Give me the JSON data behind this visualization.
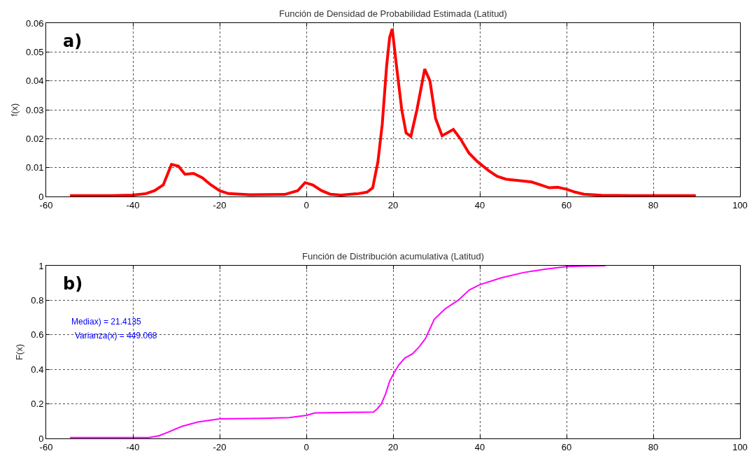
{
  "chart_data": [
    {
      "type": "line",
      "title": "Función de Densidad de Probabilidad Estimada (Latitud)",
      "ylabel": "f(x)",
      "annotations": [
        "a)"
      ],
      "series": [
        {
          "color": "#ff0000",
          "x": [
            -54.5,
            -45,
            -40,
            -37,
            -35,
            -33,
            -31.1,
            -29.5,
            -28,
            -26,
            -24,
            -22,
            -20,
            -18,
            -13,
            -5,
            -2,
            -0.3,
            1.5,
            3.5,
            5.5,
            8,
            12,
            14,
            15.3,
            16.5,
            17.5,
            18.5,
            19.2,
            19.8,
            20.8,
            22,
            23,
            24.1,
            25.5,
            27.3,
            28.5,
            29.8,
            31.3,
            33.9,
            35.5,
            37.5,
            39.5,
            42,
            44,
            46,
            49,
            52,
            54,
            56,
            58,
            60,
            62,
            64,
            68,
            75,
            89.8
          ],
          "values": [
            0.0003,
            0.0003,
            0.0005,
            0.001,
            0.002,
            0.004,
            0.0111,
            0.0105,
            0.0077,
            0.008,
            0.0065,
            0.004,
            0.002,
            0.001,
            0.0006,
            0.0007,
            0.002,
            0.0048,
            0.004,
            0.002,
            0.0008,
            0.0005,
            0.001,
            0.0015,
            0.003,
            0.012,
            0.025,
            0.045,
            0.055,
            0.058,
            0.045,
            0.03,
            0.022,
            0.0208,
            0.03,
            0.0441,
            0.04,
            0.027,
            0.021,
            0.0232,
            0.02,
            0.015,
            0.012,
            0.009,
            0.007,
            0.006,
            0.0055,
            0.005,
            0.004,
            0.003,
            0.0032,
            0.0025,
            0.0015,
            0.0008,
            0.0004,
            0.0003,
            0.0003
          ]
        }
      ],
      "xlim": [
        -60,
        100
      ],
      "xticks": [
        -60,
        -40,
        -20,
        0,
        20,
        40,
        60,
        80,
        100
      ],
      "ylim": [
        0,
        0.06
      ],
      "yticks": [
        0,
        0.01,
        0.02,
        0.03,
        0.04,
        0.05,
        0.06
      ],
      "grid": true,
      "line_style": "solid"
    },
    {
      "type": "line",
      "title": "Función de Distribución acumulativa (Latitud)",
      "ylabel": "F(x)",
      "annotations": [
        "b)",
        "Mediax) = 21.4135",
        "Varianza(x) = 449.068"
      ],
      "series": [
        {
          "color": "#ff00ff",
          "x": [
            -54.5,
            -36.3,
            -34,
            -32,
            -28.7,
            -25,
            -20,
            -10,
            -4,
            0,
            2,
            8,
            15.5,
            16.3,
            17.3,
            18.3,
            19.2,
            20,
            21.3,
            22.7,
            24.5,
            26,
            27.5,
            29.5,
            32,
            35,
            37.6,
            40,
            45,
            50,
            55,
            60,
            64,
            69
          ],
          "values": [
            0.005,
            0.005,
            0.015,
            0.035,
            0.07,
            0.095,
            0.113,
            0.116,
            0.12,
            0.134,
            0.148,
            0.15,
            0.153,
            0.17,
            0.2,
            0.26,
            0.33,
            0.37,
            0.425,
            0.465,
            0.49,
            0.53,
            0.58,
            0.69,
            0.75,
            0.8,
            0.86,
            0.89,
            0.93,
            0.96,
            0.98,
            0.995,
            0.998,
            1.0
          ]
        }
      ],
      "xlim": [
        -60,
        100
      ],
      "xticks": [
        -60,
        -40,
        -20,
        0,
        20,
        40,
        60,
        80,
        100
      ],
      "ylim": [
        0,
        1
      ],
      "yticks": [
        0,
        0.2,
        0.4,
        0.6,
        0.8,
        1
      ],
      "grid": true,
      "line_style": "solid"
    }
  ]
}
